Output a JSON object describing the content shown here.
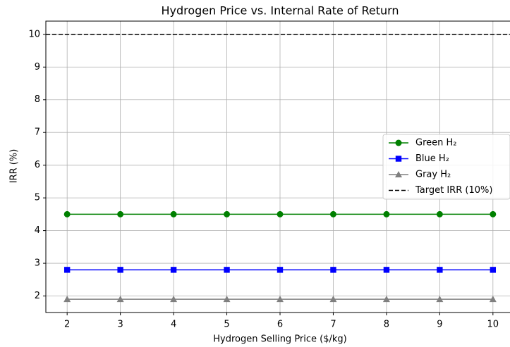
{
  "chart_data": {
    "type": "line",
    "title": "Hydrogen Price vs. Internal Rate of Return",
    "x_label": "Hydrogen Selling Price ($/kg)",
    "y_label": "IRR (%)",
    "x": [
      2,
      3,
      4,
      5,
      6,
      7,
      8,
      9,
      10
    ],
    "series": [
      {
        "name": "Green H₂",
        "color": "#008000",
        "marker": "circle",
        "values": [
          4.5,
          4.5,
          4.5,
          4.5,
          4.5,
          4.5,
          4.5,
          4.5,
          4.5
        ]
      },
      {
        "name": "Blue H₂",
        "color": "#0000ff",
        "marker": "square",
        "values": [
          2.8,
          2.8,
          2.8,
          2.8,
          2.8,
          2.8,
          2.8,
          2.8,
          2.8
        ]
      },
      {
        "name": "Gray H₂",
        "color": "#808080",
        "marker": "triangle",
        "values": [
          1.9,
          1.9,
          1.9,
          1.9,
          1.9,
          1.9,
          1.9,
          1.9,
          1.9
        ]
      }
    ],
    "target": {
      "name": "Target IRR (10%)",
      "value": 10,
      "color": "#000000"
    },
    "xlim": [
      1.6,
      10.4
    ],
    "ylim": [
      1.495,
      10.405
    ],
    "xticks": [
      2,
      3,
      4,
      5,
      6,
      7,
      8,
      9,
      10
    ],
    "yticks": [
      2,
      3,
      4,
      5,
      6,
      7,
      8,
      9,
      10
    ],
    "grid": true,
    "legend": "center right"
  }
}
